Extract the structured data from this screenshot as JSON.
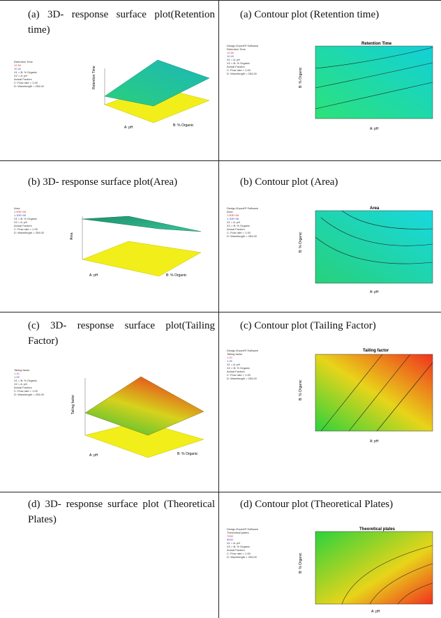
{
  "rows": [
    {
      "left_caption": "(a) 3D- response surface plot(Retention time)",
      "right_caption": "(a) Contour plot (Retention time)",
      "surface": {
        "legend_title": "Retention Time",
        "legend_high": "12.50",
        "legend_low": "10.40",
        "factors": [
          "X1 = B: % Organic",
          "X2 = A: pH"
        ],
        "actual_factors_label": "Actual Factors",
        "actual_factors": [
          "C: Flow rate = 1.00",
          "D: Wavelength = 254.00"
        ],
        "z_label": "Retention Time",
        "x_label": "A: pH",
        "y_label": "B: % Organic",
        "colors": [
          "#29d07a",
          "#1db6b9"
        ]
      },
      "contour": {
        "software": "Design-Expert® Software",
        "legend_title": "Retention Time",
        "legend_high": "12.50",
        "legend_low": "10.40",
        "factors": [
          "X1 = A: pH",
          "X2 = B: % Organic"
        ],
        "actual_factors_label": "Actual Factors",
        "actual_factors": [
          "C: Flow rate = 1.00",
          "D: Wavelength = 254.00"
        ],
        "title": "Retention Time",
        "x_label": "A: pH",
        "y_label": "B: % Organic",
        "colors": [
          "#2ce27a",
          "#12d0d8"
        ]
      }
    },
    {
      "left_caption": "(b) 3D- response surface plot(Area)",
      "right_caption": "(b) Contour plot (Area)",
      "surface": {
        "legend_title": "Area",
        "legend_high": "1.50E+06",
        "legend_low": "1.30E+06",
        "factors": [
          "X1 = B: % Organic",
          "X2 = A: pH"
        ],
        "actual_factors_label": "Actual Factors",
        "actual_factors": [
          "C: Flow rate = 1.00",
          "D: Wavelength = 254.00"
        ],
        "z_label": "Area",
        "x_label": "A: pH",
        "y_label": "B: % Organic",
        "colors": [
          "#1f8f6b",
          "#35c79a"
        ]
      },
      "contour": {
        "software": "Design-Expert® Software",
        "legend_title": "Area",
        "legend_high": "1.50E+06",
        "legend_low": "1.30E+06",
        "factors": [
          "X1 = A: pH",
          "X2 = B: % Organic"
        ],
        "actual_factors_label": "Actual Factors",
        "actual_factors": [
          "C: Flow rate = 1.00",
          "D: Wavelength = 254.00"
        ],
        "title": "Area",
        "x_label": "A: pH",
        "y_label": "B: % Organic",
        "colors": [
          "#27d17a",
          "#18d8e0"
        ]
      }
    },
    {
      "left_caption": "(c) 3D- response surface plot(Tailing Factor)",
      "right_caption": "(c) Contour plot (Tailing Factor)",
      "surface": {
        "legend_title": "Tailing factor",
        "legend_high": "1.20",
        "legend_low": "1.05",
        "factors": [
          "X1 = B: % Organic",
          "X2 = A: pH"
        ],
        "actual_factors_label": "Actual Factors",
        "actual_factors": [
          "C: Flow rate = 1.00",
          "D: Wavelength = 254.00"
        ],
        "z_label": "Tailing factor",
        "x_label": "A: pH",
        "y_label": "B: % Organic",
        "colors": [
          "#2ebd3a",
          "#e84c1c"
        ]
      },
      "contour": {
        "software": "Design-Expert® Software",
        "legend_title": "Tailing factor",
        "legend_high": "1.20",
        "legend_low": "1.05",
        "factors": [
          "X1 = A: pH",
          "X2 = B: % Organic"
        ],
        "actual_factors_label": "Actual Factors",
        "actual_factors": [
          "C: Flow rate = 1.00",
          "D: Wavelength = 254.00"
        ],
        "title": "Tailing factor",
        "x_label": "A: pH",
        "y_label": "B: % Organic",
        "colors": [
          "#2cd23c",
          "#f0321e"
        ]
      }
    },
    {
      "left_caption": "(d) 3D- response surface plot (Theoretical Plates)",
      "right_caption": "(d) Contour plot (Theoretical Plates)",
      "contour": {
        "software": "Design-Expert® Software",
        "legend_title": "Theoretical plates",
        "legend_high": "7000",
        "legend_low": "5000",
        "factors": [
          "X1 = A: pH",
          "X2 = B: % Organic"
        ],
        "actual_factors_label": "Actual Factors",
        "actual_factors": [
          "C: Flow rate = 1.00",
          "D: Wavelength = 254.00"
        ],
        "title": "Theoretical plates",
        "x_label": "A: pH",
        "y_label": "B: % Organic",
        "colors": [
          "#2cd23c",
          "#f0321e"
        ]
      }
    }
  ]
}
